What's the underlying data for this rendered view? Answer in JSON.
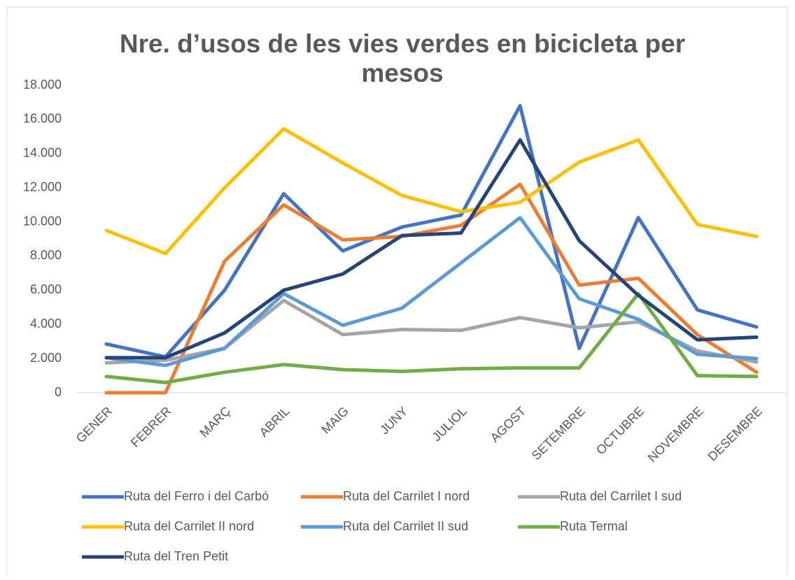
{
  "chart_data": {
    "type": "line",
    "title": "Nre. d’usos de les vies verdes en bicicleta per mesos",
    "categories": [
      "GENER",
      "FEBRER",
      "MARÇ",
      "ABRIL",
      "MAIG",
      "JUNY",
      "JULIOL",
      "AGOST",
      "SETEMBRE",
      "OCTUBRE",
      "NOVEMBRE",
      "DESEMBRE"
    ],
    "series": [
      {
        "name": "Ruta del Ferro i del Carbó",
        "color": "#4472c4",
        "values": [
          2850,
          2100,
          6000,
          11650,
          8300,
          9700,
          10400,
          16800,
          2600,
          10250,
          4850,
          3850
        ]
      },
      {
        "name": "Ruta del Carrilet I nord",
        "color": "#ed7d31",
        "values": [
          0,
          0,
          7700,
          11000,
          8950,
          9150,
          9800,
          12200,
          6300,
          6700,
          3400,
          1200
        ]
      },
      {
        "name": "Ruta del Carrilet I sud",
        "color": "#a5a5a5",
        "values": [
          1750,
          1900,
          2600,
          5400,
          3400,
          3700,
          3650,
          4400,
          3800,
          4150,
          2450,
          1800
        ]
      },
      {
        "name": "Ruta del Carrilet II nord",
        "color": "#ffc000",
        "values": [
          9500,
          8150,
          12000,
          15450,
          13450,
          11550,
          10600,
          11150,
          13500,
          14800,
          9850,
          9150
        ]
      },
      {
        "name": "Ruta del Carrilet II sud",
        "color": "#5b9bd5",
        "values": [
          2050,
          1600,
          2600,
          5800,
          3950,
          4950,
          7600,
          10250,
          5500,
          4300,
          2250,
          2000
        ]
      },
      {
        "name": "Ruta Termal",
        "color": "#70ad47",
        "values": [
          950,
          600,
          1200,
          1650,
          1350,
          1250,
          1400,
          1450,
          1450,
          5800,
          1000,
          950
        ]
      },
      {
        "name": "Ruta del Tren Petit",
        "color": "#264478",
        "values": [
          2050,
          2050,
          3500,
          6000,
          6950,
          9200,
          9350,
          14800,
          8900,
          5700,
          3100,
          3250
        ]
      }
    ],
    "ylim": [
      0,
      18000
    ],
    "yticks": [
      0,
      {
        "value": 2000,
        "label": "2.000"
      },
      {
        "value": 4000,
        "label": "4.000"
      },
      {
        "value": 6000,
        "label": "6.000"
      },
      {
        "value": 8000,
        "label": "8.000"
      },
      {
        "value": 10000,
        "label": "10.000"
      },
      {
        "value": 12000,
        "label": "12.000"
      },
      {
        "value": 14000,
        "label": "14.000"
      },
      {
        "value": 16000,
        "label": "16.000"
      },
      {
        "value": 18000,
        "label": "18.000"
      }
    ],
    "grid": false
  }
}
